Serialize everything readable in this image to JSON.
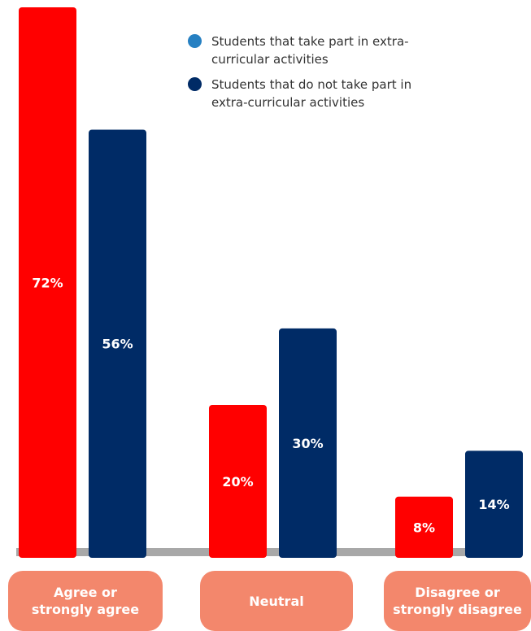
{
  "chart_data": {
    "type": "bar",
    "categories": [
      "Agree or\nstrongly agree",
      "Neutral",
      "Disagree or\nstrongly disagree"
    ],
    "series": [
      {
        "name": "Students that take part in extra-curricular activities",
        "values": [
          72,
          20,
          8
        ],
        "labels": [
          "72%",
          "20%",
          "8%"
        ],
        "color": "#ff0000"
      },
      {
        "name": "Students that do not take part in extra-curricular activities",
        "values": [
          56,
          30,
          14
        ],
        "labels": [
          "56%",
          "30%",
          "14%"
        ],
        "color": "#002b66"
      }
    ],
    "legend_dot_colors": [
      "#2680c2",
      "#002b66"
    ],
    "category_box_color": "#f3876c",
    "baseline_color": "#a8a8a8",
    "ylim": [
      0,
      72
    ],
    "legend": "top-right",
    "grid": false,
    "title": "",
    "xlabel": "",
    "ylabel": ""
  }
}
